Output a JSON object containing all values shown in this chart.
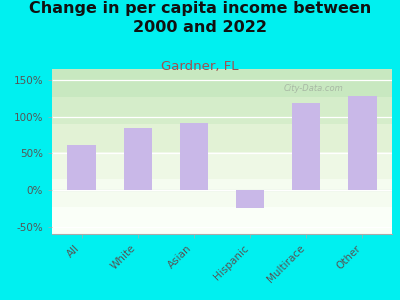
{
  "title": "Change in per capita income between\n2000 and 2022",
  "subtitle": "Gardner, FL",
  "categories": [
    "All",
    "White",
    "Asian",
    "Hispanic",
    "Multirace",
    "Other"
  ],
  "values": [
    62,
    85,
    92,
    -25,
    118,
    128
  ],
  "bar_color": "#c9b8e8",
  "title_fontsize": 11.5,
  "subtitle_fontsize": 9.5,
  "subtitle_color": "#a05050",
  "title_color": "#111111",
  "background_outer": "#00f0f0",
  "ylim": [
    -60,
    165
  ],
  "yticks": [
    -50,
    0,
    50,
    100,
    150
  ],
  "ytick_labels": [
    "-50%",
    "0%",
    "50%",
    "100%",
    "150%"
  ],
  "watermark": "City-Data.com",
  "bar_width": 0.5,
  "grad_colors": [
    "#c8e8c0",
    "#d5edca",
    "#e2f2d5",
    "#eef8e5",
    "#f5fcf0",
    "#fafff8"
  ],
  "tick_color": "#555555"
}
